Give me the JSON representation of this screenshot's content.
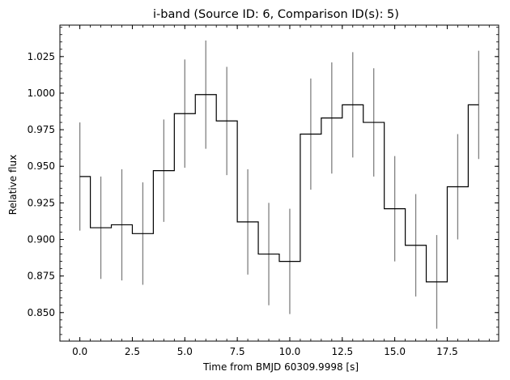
{
  "chart_data": {
    "type": "line",
    "style": "step-mid",
    "title": "i-band (Source ID: 6, Comparison ID(s): 5)",
    "xlabel": "Time from BMJD 60309.9998 [s]",
    "ylabel": "Relative flux",
    "xlim": [
      -0.95,
      19.95
    ],
    "ylim": [
      0.8305,
      1.0465
    ],
    "xticks": [
      0.0,
      2.5,
      5.0,
      7.5,
      10.0,
      12.5,
      15.0,
      17.5
    ],
    "xtick_labels": [
      "0.0",
      "2.5",
      "5.0",
      "7.5",
      "10.0",
      "12.5",
      "15.0",
      "17.5"
    ],
    "yticks": [
      0.85,
      0.875,
      0.9,
      0.925,
      0.95,
      0.975,
      1.0,
      1.025
    ],
    "ytick_labels": [
      "0.850",
      "0.875",
      "0.900",
      "0.925",
      "0.950",
      "0.975",
      "1.000",
      "1.025"
    ],
    "grid": false,
    "series": [
      {
        "color": "#000000",
        "errorbar_color": "#808080",
        "x": [
          0,
          1,
          2,
          3,
          4,
          5,
          6,
          7,
          8,
          9,
          10,
          11,
          12,
          13,
          14,
          15,
          16,
          17,
          18,
          19
        ],
        "y": [
          0.943,
          0.908,
          0.91,
          0.904,
          0.947,
          0.986,
          0.999,
          0.981,
          0.912,
          0.89,
          0.885,
          0.972,
          0.983,
          0.992,
          0.98,
          0.921,
          0.896,
          0.871,
          0.936,
          0.992
        ],
        "yerr": [
          0.037,
          0.035,
          0.038,
          0.035,
          0.035,
          0.037,
          0.037,
          0.037,
          0.036,
          0.035,
          0.036,
          0.038,
          0.038,
          0.036,
          0.037,
          0.036,
          0.035,
          0.032,
          0.036,
          0.037
        ]
      }
    ]
  }
}
